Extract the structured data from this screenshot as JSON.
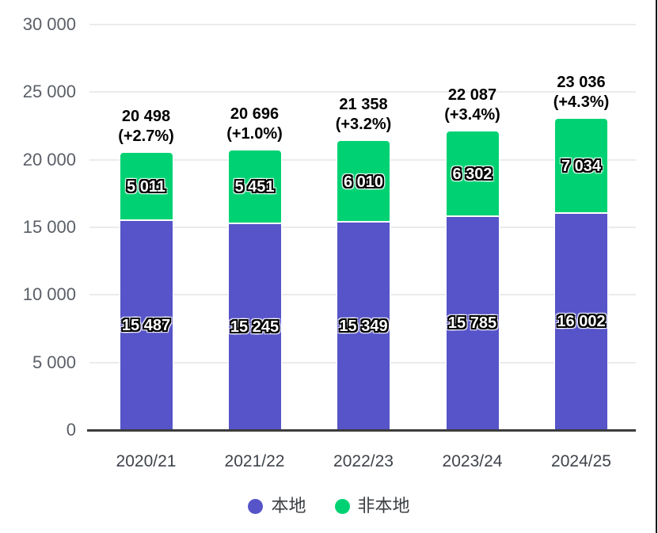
{
  "chart_data": {
    "type": "bar",
    "stacked": true,
    "title": "",
    "xlabel": "",
    "ylabel": "",
    "categories": [
      "2020/21",
      "2021/22",
      "2022/23",
      "2023/24",
      "2024/25"
    ],
    "series": [
      {
        "name": "本地",
        "color": "#5654c8",
        "values": [
          15487,
          15245,
          15349,
          15785,
          16002
        ],
        "labels": [
          "15 487",
          "15 245",
          "15 349",
          "15 785",
          "16 002"
        ]
      },
      {
        "name": "非本地",
        "color": "#00d273",
        "values": [
          5011,
          5451,
          6010,
          6302,
          7034
        ],
        "labels": [
          "5 011",
          "5 451",
          "6 010",
          "6 302",
          "7 034"
        ]
      }
    ],
    "totals": [
      20498,
      20696,
      21358,
      22087,
      23036
    ],
    "total_labels": [
      "20 498",
      "20 696",
      "21 358",
      "22 087",
      "23 036"
    ],
    "growth_labels": [
      "(+2.7%)",
      "(+1.0%)",
      "(+3.2%)",
      "(+3.4%)",
      "(+4.3%)"
    ],
    "y_ticks": [
      {
        "label": "30 000",
        "value": 30000
      },
      {
        "label": "25 000",
        "value": 25000
      },
      {
        "label": "20 000",
        "value": 20000
      },
      {
        "label": "15 000",
        "value": 15000
      },
      {
        "label": "10 000",
        "value": 10000
      },
      {
        "label": "5 000",
        "value": 5000
      },
      {
        "label": "0",
        "value": 0
      }
    ],
    "ylim": [
      0,
      30000
    ],
    "grid": true,
    "legend_position": "bottom"
  },
  "legend": {
    "items": [
      {
        "label": "本地",
        "color": "#5654c8"
      },
      {
        "label": "非本地",
        "color": "#00d273"
      }
    ]
  },
  "colors": {
    "series_local": "#5654c8",
    "series_nonlocal": "#00d273",
    "gridline": "#ebebeb",
    "axis_line": "#3c3c3c",
    "y_tick_text": "#5a5e66",
    "x_tick_text": "#3f434b",
    "total_text": "#000000",
    "border_right": "#161616"
  }
}
